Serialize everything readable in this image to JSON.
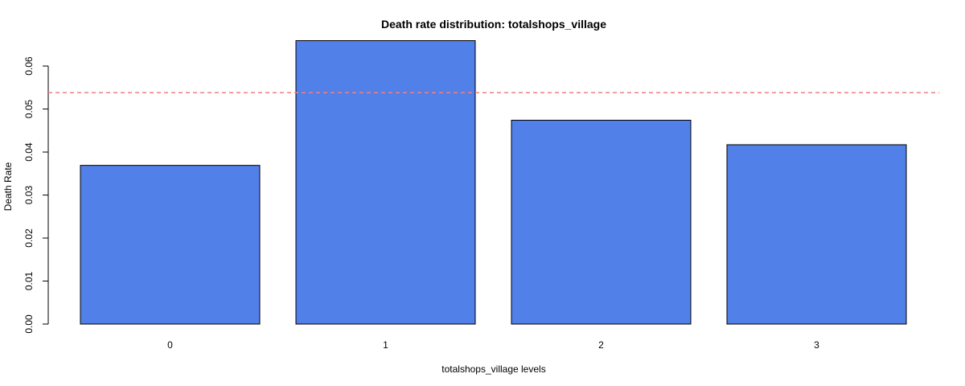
{
  "chart_data": {
    "type": "bar",
    "title": "Death rate distribution: totalshops_village",
    "xlabel": "totalshops_village levels",
    "ylabel": "Death Rate",
    "categories": [
      "0",
      "1",
      "2",
      "3"
    ],
    "values": [
      0.0369,
      0.0659,
      0.0474,
      0.0417
    ],
    "ylim": [
      0,
      0.066
    ],
    "yticks": [
      0.0,
      0.01,
      0.02,
      0.03,
      0.04,
      0.05,
      0.06
    ],
    "ytick_labels": [
      "0.00",
      "0.01",
      "0.02",
      "0.03",
      "0.04",
      "0.05",
      "0.06"
    ],
    "reference_line": {
      "value": 0.0538,
      "color": "#F08080",
      "style": "dashed"
    },
    "bar_color": "#5180E9",
    "bar_border_color": "#000000",
    "grid": false,
    "legend": "none"
  }
}
